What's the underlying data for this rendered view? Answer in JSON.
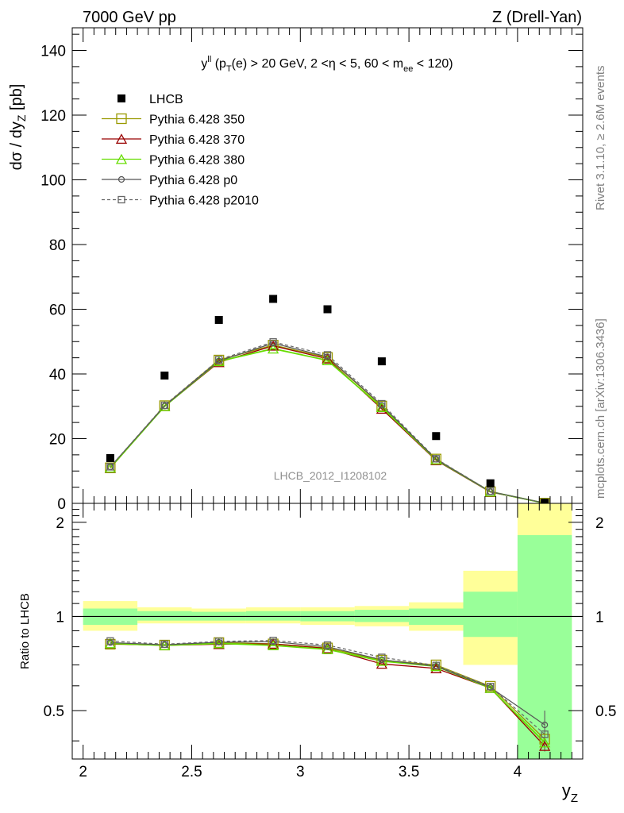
{
  "header": {
    "left": "7000 GeV pp",
    "right": "Z (Drell-Yan)"
  },
  "side_labels": {
    "rivet": "Rivet 3.1.10, ≥ 2.6M events",
    "mcplots": "mcplots.cern.ch [arXiv:1306.3436]"
  },
  "main_panel": {
    "title_y": "y",
    "title_y_sup": "ll",
    "title_p": " (p",
    "title_p_sub": "T",
    "title_mid": "(e) > 20 GeV, 2 <η < 5, 60 < m",
    "title_m_sub": "ee",
    "title_end": " < 120)",
    "ylabel_main": "dσ / dy",
    "ylabel_sub": "Z",
    "ylabel_unit": " [pb]",
    "watermark": "LHCB_2012_I1208102",
    "y_ticks": [
      "0",
      "20",
      "40",
      "60",
      "80",
      "100",
      "120",
      "140"
    ]
  },
  "ratio_panel": {
    "ylabel": "Ratio to LHCB",
    "y_ticks": [
      "0.5",
      "1",
      "2"
    ]
  },
  "x_axis": {
    "label": "y",
    "label_sub": "Z",
    "ticks": [
      "2",
      "2.5",
      "3",
      "3.5",
      "4"
    ]
  },
  "colors": {
    "data": "#000000",
    "p350": "#999900",
    "p370": "#990000",
    "p380": "#66dd00",
    "p0": "#555555",
    "p2010": "#666666",
    "band_outer": "#ffff99",
    "band_inner": "#99ff99"
  },
  "chart_data": {
    "type": "scatter",
    "x": [
      2.125,
      2.375,
      2.625,
      2.875,
      3.125,
      3.375,
      3.625,
      3.875,
      4.125
    ],
    "x_edges": [
      2.0,
      2.25,
      2.5,
      2.75,
      3.0,
      3.25,
      3.5,
      3.75,
      4.0,
      4.25
    ],
    "xlim": [
      1.95,
      4.3
    ],
    "ylim": [
      0,
      147
    ],
    "ratio_ylim": [
      0.35,
      2.3
    ],
    "ratio_log": true,
    "series": [
      {
        "name": "LHCB",
        "key": "data",
        "values": [
          14.0,
          39.5,
          56.7,
          63.2,
          60.0,
          43.9,
          20.8,
          6.2,
          0.2
        ]
      },
      {
        "name": "Pythia 6.428 350",
        "key": "p350",
        "values": [
          11.0,
          30.2,
          44.3,
          48.9,
          45.1,
          30.1,
          13.7,
          3.6,
          0.08
        ]
      },
      {
        "name": "Pythia 6.428 370",
        "key": "p370",
        "values": [
          10.9,
          30.0,
          43.6,
          48.7,
          44.7,
          29.2,
          13.3,
          3.5,
          0.08
        ]
      },
      {
        "name": "Pythia 6.428 380",
        "key": "p380",
        "values": [
          11.0,
          30.0,
          43.9,
          47.8,
          44.2,
          29.7,
          13.5,
          3.6,
          0.08
        ]
      },
      {
        "name": "Pythia 6.428 p0",
        "key": "p0",
        "values": [
          11.3,
          30.1,
          44.0,
          49.5,
          45.3,
          30.3,
          13.6,
          3.6,
          0.09
        ]
      },
      {
        "name": "Pythia 6.428 p2010",
        "key": "p2010",
        "values": [
          11.3,
          30.3,
          44.4,
          49.9,
          45.9,
          30.8,
          13.8,
          3.7,
          0.09
        ]
      }
    ],
    "ratios": [
      {
        "key": "p350",
        "values": [
          0.815,
          0.81,
          0.825,
          0.817,
          0.793,
          0.725,
          0.7,
          0.598,
          0.405
        ]
      },
      {
        "key": "p370",
        "values": [
          0.818,
          0.808,
          0.815,
          0.817,
          0.79,
          0.705,
          0.682,
          0.59,
          0.385
        ]
      },
      {
        "key": "p380",
        "values": [
          0.82,
          0.808,
          0.82,
          0.808,
          0.785,
          0.72,
          0.693,
          0.59,
          0.395
        ]
      },
      {
        "key": "p0",
        "values": [
          0.825,
          0.812,
          0.827,
          0.83,
          0.8,
          0.727,
          0.693,
          0.593,
          0.45
        ]
      },
      {
        "key": "p2010",
        "values": [
          0.835,
          0.815,
          0.832,
          0.838,
          0.81,
          0.74,
          0.697,
          0.597,
          0.42
        ]
      }
    ],
    "uncertainty_bands": {
      "outer": [
        [
          0.9,
          1.12
        ],
        [
          0.95,
          1.07
        ],
        [
          0.95,
          1.06
        ],
        [
          0.95,
          1.07
        ],
        [
          0.94,
          1.07
        ],
        [
          0.93,
          1.08
        ],
        [
          0.9,
          1.11
        ],
        [
          0.7,
          1.4
        ],
        [
          0.35,
          2.3
        ]
      ],
      "inner": [
        [
          0.94,
          1.06
        ],
        [
          0.97,
          1.04
        ],
        [
          0.97,
          1.035
        ],
        [
          0.97,
          1.04
        ],
        [
          0.965,
          1.04
        ],
        [
          0.96,
          1.05
        ],
        [
          0.94,
          1.06
        ],
        [
          0.86,
          1.2
        ],
        [
          0.35,
          1.82
        ]
      ]
    },
    "legend_position": "top-left"
  }
}
